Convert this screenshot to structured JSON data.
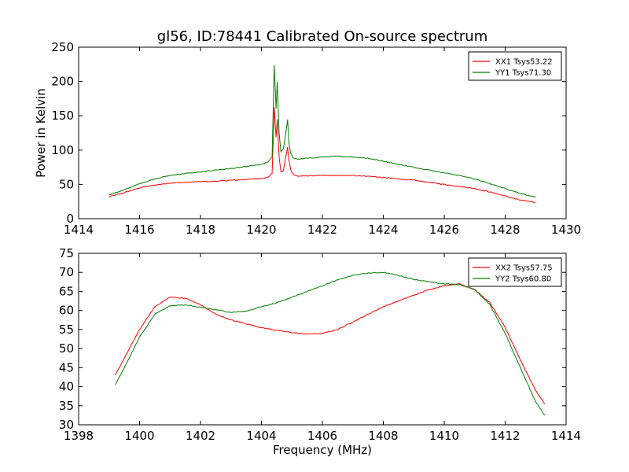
{
  "figure": {
    "title": "gl56, ID:78441 Calibrated On-source spectrum",
    "xlabel": "Frequency (MHz)"
  },
  "chart_data": [
    {
      "type": "line",
      "title": "gl56, ID:78441 Calibrated On-source spectrum",
      "xlabel": "",
      "ylabel": "Power in Kelvin",
      "xlim": [
        1414,
        1430
      ],
      "ylim": [
        0,
        250
      ],
      "xticks": [
        1414,
        1416,
        1418,
        1420,
        1422,
        1424,
        1426,
        1428,
        1430
      ],
      "yticks": [
        0,
        50,
        100,
        150,
        200,
        250
      ],
      "grid": false,
      "legend": "top-right",
      "series": [
        {
          "name": "XX1 Tsys53.22",
          "color": "#ff0000",
          "x": [
            1415.0,
            1415.5,
            1416.0,
            1416.5,
            1417.0,
            1417.5,
            1418.0,
            1418.5,
            1419.0,
            1419.5,
            1420.0,
            1420.2,
            1420.35,
            1420.42,
            1420.48,
            1420.52,
            1420.58,
            1420.64,
            1420.72,
            1420.8,
            1420.86,
            1420.9,
            1420.96,
            1421.05,
            1421.2,
            1421.5,
            1422.0,
            1422.5,
            1423.0,
            1423.5,
            1424.0,
            1424.5,
            1425.0,
            1425.5,
            1426.0,
            1426.5,
            1427.0,
            1427.5,
            1428.0,
            1428.5,
            1429.0
          ],
          "values": [
            32,
            38,
            45,
            49,
            52,
            53,
            54,
            54.5,
            56,
            57,
            59,
            60,
            66,
            162,
            118,
            145,
            90,
            68,
            70,
            90,
            104,
            86,
            72,
            64,
            62,
            62.5,
            63,
            63,
            63,
            62,
            60,
            58,
            56,
            53,
            50,
            47,
            44,
            39,
            33,
            27,
            24
          ]
        },
        {
          "name": "YY1 Tsys71.30",
          "color": "#008000",
          "x": [
            1415.0,
            1415.5,
            1416.0,
            1416.5,
            1417.0,
            1417.5,
            1418.0,
            1418.5,
            1419.0,
            1419.5,
            1420.0,
            1420.2,
            1420.35,
            1420.42,
            1420.48,
            1420.52,
            1420.58,
            1420.64,
            1420.72,
            1420.8,
            1420.86,
            1420.9,
            1420.96,
            1421.05,
            1421.2,
            1421.5,
            1422.0,
            1422.5,
            1423.0,
            1423.5,
            1424.0,
            1424.5,
            1425.0,
            1425.5,
            1426.0,
            1426.5,
            1427.0,
            1427.5,
            1428.0,
            1428.5,
            1429.0
          ],
          "values": [
            35,
            42,
            51,
            58,
            63,
            66,
            68,
            71,
            73,
            76,
            79,
            82,
            90,
            224,
            160,
            200,
            125,
            98,
            102,
            125,
            145,
            112,
            95,
            88,
            87,
            88,
            90,
            91,
            90,
            88,
            84,
            79,
            75,
            71,
            67,
            63,
            58,
            51,
            44,
            37,
            31
          ]
        }
      ]
    },
    {
      "type": "line",
      "title": "",
      "xlabel": "Frequency (MHz)",
      "ylabel": "",
      "xlim": [
        1398,
        1414
      ],
      "ylim": [
        30,
        75
      ],
      "xticks": [
        1398,
        1400,
        1402,
        1404,
        1406,
        1408,
        1410,
        1412,
        1414
      ],
      "yticks": [
        30,
        35,
        40,
        45,
        50,
        55,
        60,
        65,
        70,
        75
      ],
      "grid": false,
      "legend": "top-right",
      "series": [
        {
          "name": "XX2 Tsys57.75",
          "color": "#ff0000",
          "x": [
            1399.2,
            1399.5,
            1400.0,
            1400.5,
            1401.0,
            1401.5,
            1402.0,
            1402.5,
            1403.0,
            1403.5,
            1404.0,
            1404.5,
            1405.0,
            1405.5,
            1406.0,
            1406.5,
            1407.0,
            1407.5,
            1408.0,
            1408.5,
            1409.0,
            1409.5,
            1410.0,
            1410.5,
            1411.0,
            1411.5,
            1412.0,
            1412.5,
            1413.0,
            1413.3
          ],
          "values": [
            43,
            47.5,
            55,
            61,
            63.5,
            63.2,
            61.5,
            59,
            57.5,
            56.5,
            55.5,
            54.8,
            54.2,
            53.8,
            54,
            55,
            57,
            59,
            61,
            62.5,
            64,
            65.5,
            66.5,
            67,
            65.5,
            62,
            55.5,
            47,
            39,
            35.5
          ]
        },
        {
          "name": "YY2 Tsys60.80",
          "color": "#008000",
          "x": [
            1399.2,
            1399.5,
            1400.0,
            1400.5,
            1401.0,
            1401.5,
            1402.0,
            1402.5,
            1403.0,
            1403.5,
            1404.0,
            1404.5,
            1405.0,
            1405.5,
            1406.0,
            1406.5,
            1407.0,
            1407.5,
            1408.0,
            1408.5,
            1409.0,
            1409.5,
            1410.0,
            1410.5,
            1411.0,
            1411.5,
            1412.0,
            1412.5,
            1413.0,
            1413.3
          ],
          "values": [
            40.5,
            45,
            53,
            59,
            61.2,
            61.5,
            60.8,
            60.2,
            59.5,
            59.8,
            61,
            62,
            63.5,
            65,
            66.5,
            68,
            69.2,
            69.8,
            70,
            69.2,
            68.2,
            67.5,
            67,
            66.8,
            65.5,
            61.5,
            54,
            45,
            36,
            32.5
          ]
        }
      ]
    }
  ]
}
